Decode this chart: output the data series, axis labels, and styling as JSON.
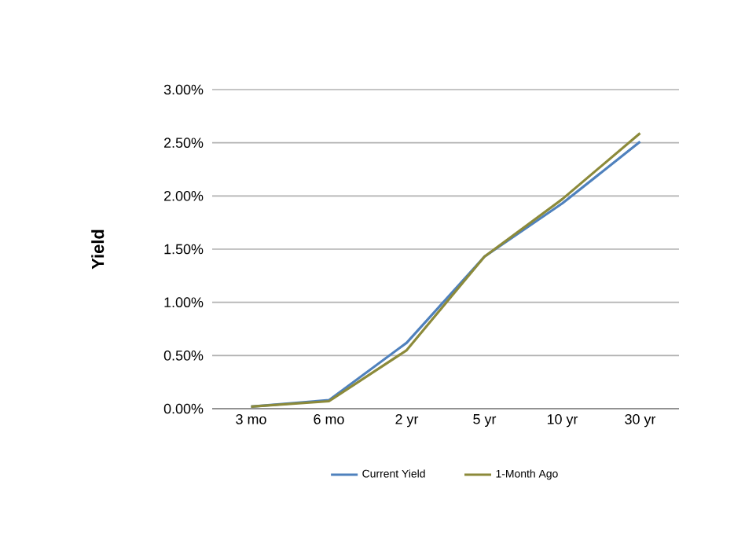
{
  "chart_data": {
    "type": "line",
    "ylabel": "Yield",
    "categories": [
      "3 mo",
      "6 mo",
      "2 yr",
      "5 yr",
      "10 yr",
      "30 yr"
    ],
    "series": [
      {
        "name": "Current Yield",
        "color": "#4f81bd",
        "values": [
          0.02,
          0.08,
          0.62,
          1.43,
          1.93,
          2.51
        ]
      },
      {
        "name": "1-Month Ago",
        "color": "#8c8a3a",
        "values": [
          0.02,
          0.07,
          0.55,
          1.43,
          1.97,
          2.59
        ]
      }
    ],
    "ylim": [
      0,
      3
    ],
    "yticks": [
      {
        "value": 0,
        "label": "0.00%"
      },
      {
        "value": 0.5,
        "label": "0.50%"
      },
      {
        "value": 1,
        "label": "1.00%"
      },
      {
        "value": 1.5,
        "label": "1.50%"
      },
      {
        "value": 2,
        "label": "2.00%"
      },
      {
        "value": 2.5,
        "label": "2.50%"
      },
      {
        "value": 3,
        "label": "3.00%"
      }
    ],
    "grid": "y",
    "legend": "bottom",
    "marker": "none",
    "line_style": "solid"
  }
}
